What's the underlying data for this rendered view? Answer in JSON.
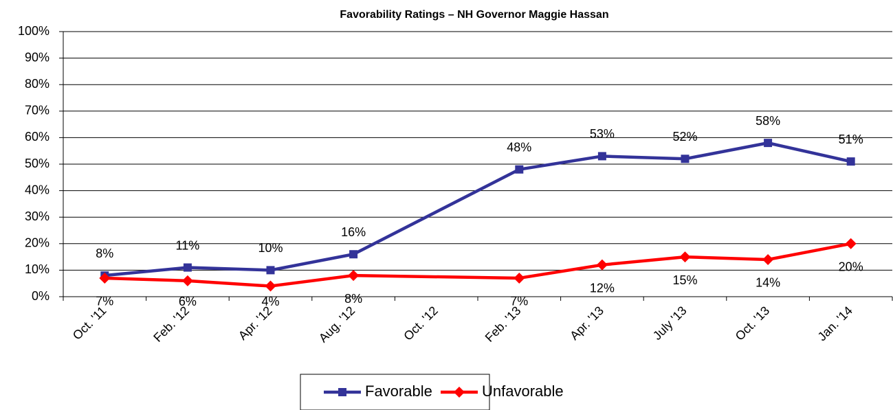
{
  "chart_data": {
    "type": "line",
    "title": "Favorability Ratings – NH Governor Maggie Hassan",
    "categories": [
      "Oct. '11",
      "Feb. '12",
      "Apr. '12",
      "Aug. '12",
      "Oct. '12",
      "Feb. '13",
      "Apr. '13",
      "July '13",
      "Oct. '13",
      "Jan. '14"
    ],
    "series": [
      {
        "name": "Favorable",
        "color": "#333399",
        "marker": "square",
        "values": [
          8,
          11,
          10,
          16,
          null,
          48,
          53,
          52,
          58,
          51
        ],
        "value_labels": [
          "8%",
          "11%",
          "10%",
          "16%",
          null,
          "48%",
          "53%",
          "52%",
          "58%",
          "51%"
        ]
      },
      {
        "name": "Unfavorable",
        "color": "#ff0000",
        "marker": "diamond",
        "values": [
          7,
          6,
          4,
          8,
          null,
          7,
          12,
          15,
          14,
          20
        ],
        "value_labels": [
          "7%",
          "6%",
          "4%",
          "8%",
          null,
          "7%",
          "12%",
          "15%",
          "14%",
          "20%"
        ]
      }
    ],
    "span_gaps": true,
    "ylim": [
      0,
      100
    ],
    "yticks": [
      {
        "value": 0,
        "label": "0%"
      },
      {
        "value": 10,
        "label": "10%"
      },
      {
        "value": 20,
        "label": "20%"
      },
      {
        "value": 30,
        "label": "30%"
      },
      {
        "value": 40,
        "label": "40%"
      },
      {
        "value": 50,
        "label": "50%"
      },
      {
        "value": 60,
        "label": "60%"
      },
      {
        "value": 70,
        "label": "70%"
      },
      {
        "value": 80,
        "label": "80%"
      },
      {
        "value": 90,
        "label": "90%"
      },
      {
        "value": 100,
        "label": "100%"
      }
    ],
    "grid": true,
    "legend": "bottom"
  }
}
